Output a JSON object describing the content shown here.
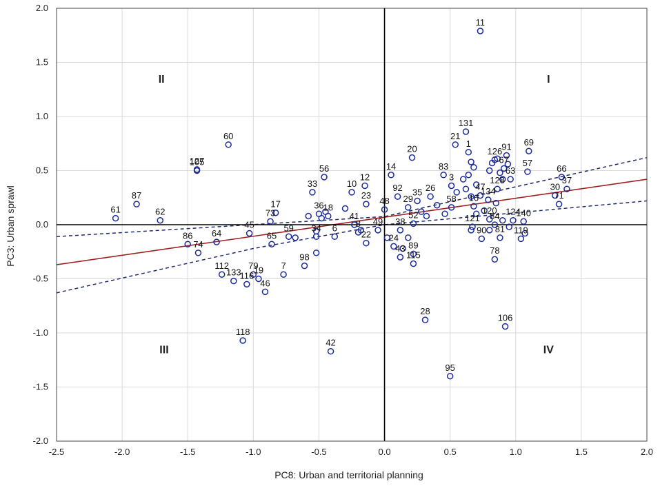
{
  "chart_data": {
    "type": "scatter",
    "xlabel": "PC8: Urban and territorial planning",
    "ylabel": "PC3: Urban sprawl",
    "xlim": [
      -2.5,
      2.0
    ],
    "ylim": [
      -2.0,
      2.0
    ],
    "xticks": [
      "-2.5",
      "-2.0",
      "-1.5",
      "-1.0",
      "-0.5",
      "0.0",
      "0.5",
      "1.0",
      "1.5",
      "2.0"
    ],
    "yticks": [
      "-2.0",
      "-1.5",
      "-1.0",
      "-0.5",
      "0.0",
      "0.5",
      "1.0",
      "1.5",
      "2.0"
    ],
    "grid": true,
    "quadrants": [
      {
        "label": "I",
        "x": 1.25,
        "y": 1.35
      },
      {
        "label": "II",
        "x": -1.7,
        "y": 1.35
      },
      {
        "label": "III",
        "x": -1.68,
        "y": -1.15
      },
      {
        "label": "IV",
        "x": 1.25,
        "y": -1.15
      }
    ],
    "regression": {
      "x": [
        -2.5,
        2.0
      ],
      "y": [
        -0.37,
        0.42
      ],
      "color": "#a02020"
    },
    "confidence_upper": {
      "x": [
        -2.5,
        0.0,
        1.0,
        2.0
      ],
      "y": [
        -0.11,
        0.075,
        0.35,
        0.62
      ],
      "color": "#1f2a6b"
    },
    "confidence_lower": {
      "x": [
        -2.5,
        -1.0,
        0.0,
        2.0
      ],
      "y": [
        -0.63,
        -0.22,
        0.0,
        0.22
      ],
      "color": "#1f2a6b"
    },
    "marker_color": "#1a2a9c",
    "points": [
      {
        "label": "11",
        "x": 0.73,
        "y": 1.79
      },
      {
        "label": "131",
        "x": 0.62,
        "y": 0.86
      },
      {
        "label": "21",
        "x": 0.54,
        "y": 0.74
      },
      {
        "label": "1",
        "x": 0.64,
        "y": 0.67
      },
      {
        "label": "20",
        "x": 0.21,
        "y": 0.62
      },
      {
        "label": "60",
        "x": -1.19,
        "y": 0.74
      },
      {
        "label": "127",
        "x": -1.43,
        "y": 0.51
      },
      {
        "label": "105",
        "x": -1.43,
        "y": 0.5
      },
      {
        "label": "56",
        "x": -0.46,
        "y": 0.44
      },
      {
        "label": "14",
        "x": 0.05,
        "y": 0.46
      },
      {
        "label": "12",
        "x": -0.15,
        "y": 0.36
      },
      {
        "label": "10",
        "x": -0.25,
        "y": 0.3
      },
      {
        "label": "33",
        "x": -0.55,
        "y": 0.3
      },
      {
        "label": "83",
        "x": 0.45,
        "y": 0.46
      },
      {
        "label": "3",
        "x": 0.51,
        "y": 0.36
      },
      {
        "label": "92",
        "x": 0.1,
        "y": 0.26
      },
      {
        "label": "35",
        "x": 0.25,
        "y": 0.22
      },
      {
        "label": "26",
        "x": 0.35,
        "y": 0.26
      },
      {
        "label": "23",
        "x": -0.14,
        "y": 0.19
      },
      {
        "label": "48",
        "x": 0.0,
        "y": 0.14
      },
      {
        "label": "29",
        "x": 0.18,
        "y": 0.16
      },
      {
        "label": "87",
        "x": -1.89,
        "y": 0.19
      },
      {
        "label": "61",
        "x": -2.05,
        "y": 0.06
      },
      {
        "label": "62",
        "x": -1.71,
        "y": 0.04
      },
      {
        "label": "17",
        "x": -0.83,
        "y": 0.11
      },
      {
        "label": "73",
        "x": -0.87,
        "y": 0.03
      },
      {
        "label": "36",
        "x": -0.5,
        "y": 0.1
      },
      {
        "label": "18",
        "x": -0.43,
        "y": 0.08
      },
      {
        "label": "45",
        "x": -1.03,
        "y": -0.08
      },
      {
        "label": "86",
        "x": -1.5,
        "y": -0.18
      },
      {
        "label": "64",
        "x": -1.28,
        "y": -0.16
      },
      {
        "label": "74",
        "x": -1.42,
        "y": -0.26
      },
      {
        "label": "65",
        "x": -0.86,
        "y": -0.18
      },
      {
        "label": "59",
        "x": -0.73,
        "y": -0.11
      },
      {
        "label": "34",
        "x": -0.52,
        "y": -0.11
      },
      {
        "label": "6",
        "x": -0.38,
        "y": -0.11
      },
      {
        "label": "41",
        "x": -0.23,
        "y": 0.0
      },
      {
        "label": "8",
        "x": -0.2,
        "y": -0.07
      },
      {
        "label": "49",
        "x": -0.05,
        "y": -0.05
      },
      {
        "label": "22",
        "x": -0.14,
        "y": -0.17
      },
      {
        "label": "98",
        "x": -0.61,
        "y": -0.38
      },
      {
        "label": "7",
        "x": -0.77,
        "y": -0.46
      },
      {
        "label": "112",
        "x": -1.24,
        "y": -0.46
      },
      {
        "label": "133",
        "x": -1.15,
        "y": -0.52
      },
      {
        "label": "79",
        "x": -1.0,
        "y": -0.46
      },
      {
        "label": "19",
        "x": -0.96,
        "y": -0.5
      },
      {
        "label": "116",
        "x": -1.05,
        "y": -0.55
      },
      {
        "label": "46",
        "x": -0.91,
        "y": -0.62
      },
      {
        "label": "118",
        "x": -1.08,
        "y": -1.07
      },
      {
        "label": "42",
        "x": -0.41,
        "y": -1.17
      },
      {
        "label": "38",
        "x": 0.12,
        "y": -0.05
      },
      {
        "label": "52",
        "x": 0.22,
        "y": 0.01
      },
      {
        "label": "24",
        "x": 0.07,
        "y": -0.2
      },
      {
        "label": "43",
        "x": 0.12,
        "y": -0.3
      },
      {
        "label": "89",
        "x": 0.22,
        "y": -0.27
      },
      {
        "label": "115",
        "x": 0.22,
        "y": -0.36
      },
      {
        "label": "28",
        "x": 0.31,
        "y": -0.88
      },
      {
        "label": "95",
        "x": 0.5,
        "y": -1.4
      },
      {
        "label": "106",
        "x": 0.92,
        "y": -0.94
      },
      {
        "label": "78",
        "x": 0.84,
        "y": -0.32
      },
      {
        "label": "47",
        "x": 0.73,
        "y": 0.27
      },
      {
        "label": "134",
        "x": 0.79,
        "y": 0.23
      },
      {
        "label": "128",
        "x": 0.86,
        "y": 0.33
      },
      {
        "label": "126",
        "x": 0.84,
        "y": 0.6
      },
      {
        "label": "91",
        "x": 0.93,
        "y": 0.64
      },
      {
        "label": "69",
        "x": 1.1,
        "y": 0.68
      },
      {
        "label": "57",
        "x": 1.09,
        "y": 0.49
      },
      {
        "label": "66",
        "x": 1.35,
        "y": 0.44
      },
      {
        "label": "37",
        "x": 1.39,
        "y": 0.33
      },
      {
        "label": "30",
        "x": 1.3,
        "y": 0.27
      },
      {
        "label": "71",
        "x": 1.33,
        "y": 0.19
      },
      {
        "label": "124",
        "x": 0.98,
        "y": 0.04
      },
      {
        "label": "140",
        "x": 1.06,
        "y": 0.03
      },
      {
        "label": "119",
        "x": 1.04,
        "y": -0.13
      },
      {
        "label": "90",
        "x": 0.74,
        "y": -0.13
      },
      {
        "label": "81",
        "x": 0.88,
        "y": -0.12
      },
      {
        "label": "121",
        "x": 0.67,
        "y": -0.02
      },
      {
        "label": "120",
        "x": 0.8,
        "y": 0.05
      },
      {
        "label": "84",
        "x": 0.84,
        "y": 0.0
      },
      {
        "label": "58",
        "x": 0.51,
        "y": 0.16
      },
      {
        "label": "16",
        "x": 0.68,
        "y": 0.17
      },
      {
        "label": "67",
        "x": 0.91,
        "y": 0.52
      },
      {
        "label": "63",
        "x": 0.96,
        "y": 0.42
      }
    ],
    "unlabeled_points": [
      {
        "x": 0.66,
        "y": 0.58
      },
      {
        "x": 0.68,
        "y": 0.53
      },
      {
        "x": 0.6,
        "y": 0.42
      },
      {
        "x": 0.7,
        "y": 0.37
      },
      {
        "x": 0.62,
        "y": 0.33
      },
      {
        "x": 0.55,
        "y": 0.3
      },
      {
        "x": 0.82,
        "y": 0.57
      },
      {
        "x": 0.86,
        "y": 0.61
      },
      {
        "x": 0.94,
        "y": 0.56
      },
      {
        "x": 0.88,
        "y": 0.48
      },
      {
        "x": 0.8,
        "y": 0.5
      },
      {
        "x": 0.9,
        "y": 0.42
      },
      {
        "x": 0.66,
        "y": 0.26
      },
      {
        "x": 0.64,
        "y": 0.46
      },
      {
        "x": 0.85,
        "y": 0.2
      },
      {
        "x": 0.7,
        "y": 0.1
      },
      {
        "x": 0.9,
        "y": 0.04
      },
      {
        "x": 0.76,
        "y": 0.13
      },
      {
        "x": 0.95,
        "y": -0.02
      },
      {
        "x": 0.66,
        "y": -0.05
      },
      {
        "x": 0.8,
        "y": -0.05
      },
      {
        "x": 1.07,
        "y": -0.08
      },
      {
        "x": 0.28,
        "y": 0.12
      },
      {
        "x": 0.32,
        "y": 0.08
      },
      {
        "x": 0.18,
        "y": -0.12
      },
      {
        "x": 0.14,
        "y": -0.22
      },
      {
        "x": 0.02,
        "y": -0.12
      },
      {
        "x": -0.18,
        "y": -0.05
      },
      {
        "x": -0.3,
        "y": 0.15
      },
      {
        "x": -0.48,
        "y": 0.06
      },
      {
        "x": -0.52,
        "y": -0.06
      },
      {
        "x": -0.58,
        "y": 0.08
      },
      {
        "x": -0.45,
        "y": 0.12
      },
      {
        "x": -0.52,
        "y": -0.26
      },
      {
        "x": -0.68,
        "y": -0.12
      },
      {
        "x": 0.4,
        "y": 0.18
      },
      {
        "x": 0.46,
        "y": 0.1
      }
    ]
  }
}
